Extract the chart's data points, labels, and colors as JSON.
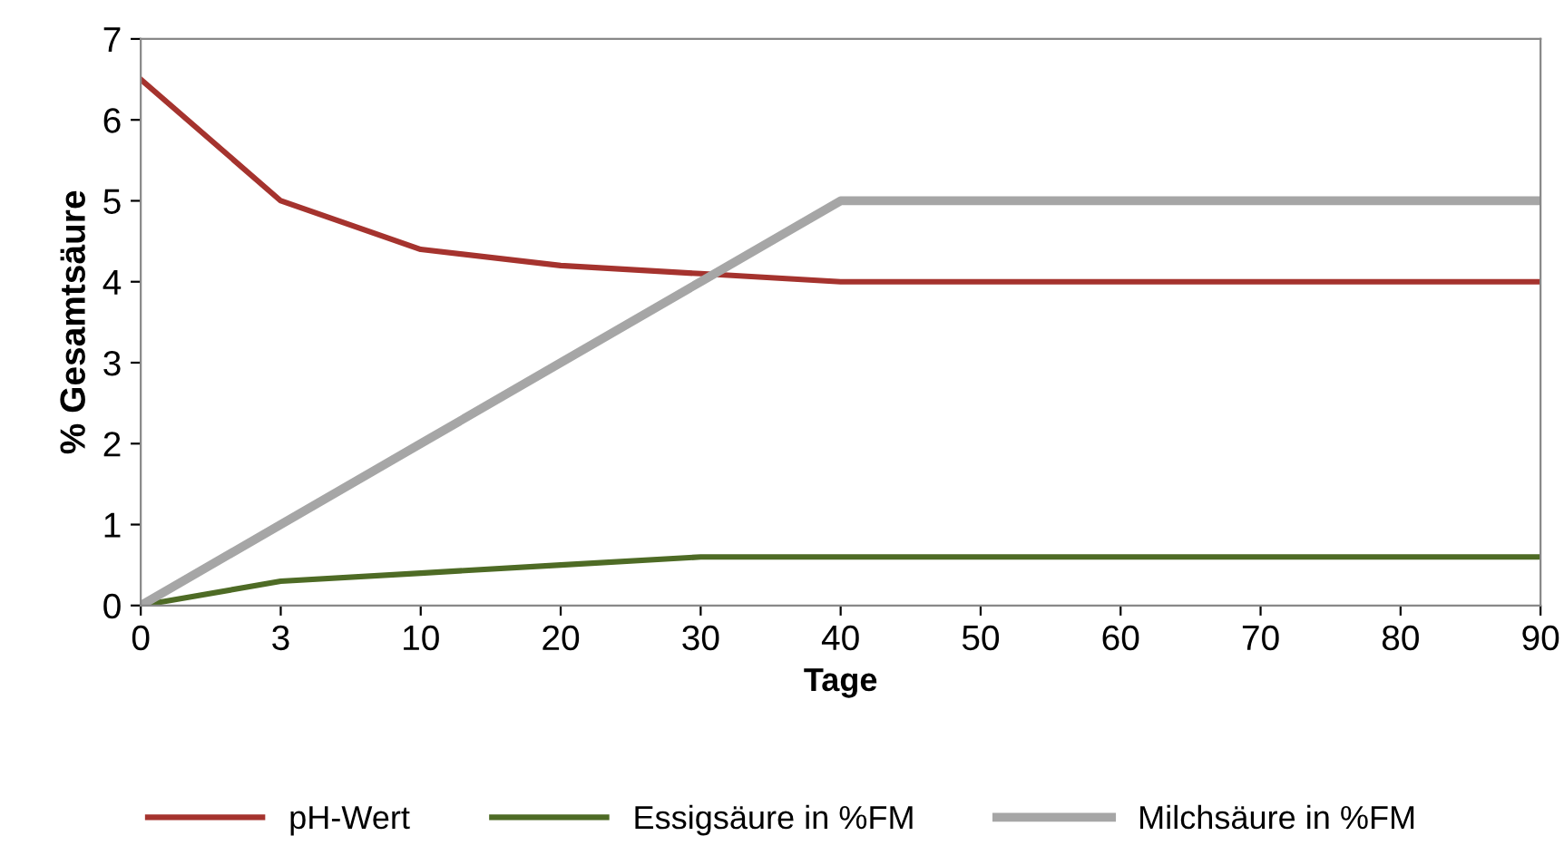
{
  "chart_data": {
    "type": "line",
    "xlabel": "Tage",
    "ylabel": "% Gesamtsäure",
    "categories": [
      "0",
      "3",
      "10",
      "20",
      "30",
      "40",
      "50",
      "60",
      "70",
      "80",
      "90"
    ],
    "series": [
      {
        "name": "pH-Wert",
        "color": "#a5332e",
        "values": [
          6.5,
          5.0,
          4.4,
          4.2,
          4.1,
          4.0,
          4.0,
          4.0,
          4.0,
          4.0,
          4.0
        ]
      },
      {
        "name": "Essigsäure in %FM",
        "color": "#4e6b25",
        "values": [
          0,
          0.3,
          0.4,
          0.5,
          0.6,
          0.6,
          0.6,
          0.6,
          0.6,
          0.6,
          0.6
        ]
      },
      {
        "name": "Milchsäure in %FM",
        "color": "#a6a6a6",
        "values": [
          0,
          1,
          2,
          3,
          4,
          5,
          5,
          5,
          5,
          5,
          5
        ]
      }
    ],
    "ylim": [
      0,
      7
    ],
    "yticks": [
      0,
      1,
      2,
      3,
      4,
      5,
      6,
      7
    ],
    "grid": false,
    "legend": "bottom",
    "marker": "none",
    "line_style": "solid"
  }
}
